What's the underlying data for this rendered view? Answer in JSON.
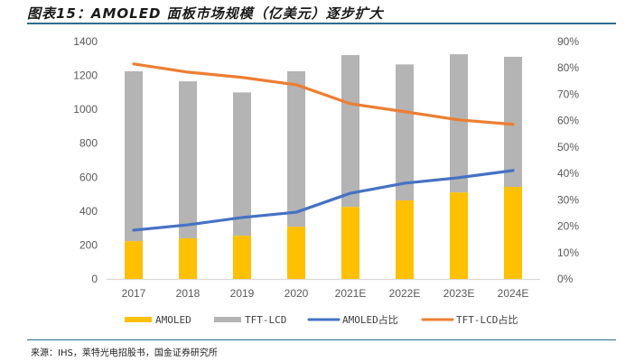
{
  "title": "图表15：AMOLED 面板市场规模（亿美元）逐步扩大",
  "source": "来源：IHS，莱特光电招股书，国金证券研究所",
  "colors": {
    "amoled": "#ffc000",
    "tftlcd": "#b4b4b4",
    "amoled_share": "#4472c4",
    "tftlcd_share": "#ed7d31",
    "axis": "#d9d9d9",
    "rule": "#2e6d8e"
  },
  "chart_data": {
    "type": "bar",
    "stacked": true,
    "title": "AMOLED 面板市场规模（亿美元）逐步扩大",
    "categories": [
      "2017",
      "2018",
      "2019",
      "2020",
      "2021E",
      "2022E",
      "2023E",
      "2024E"
    ],
    "series": [
      {
        "name": "AMOLED",
        "type": "bar",
        "axis": "left",
        "values": [
          223,
          240,
          255,
          308,
          425,
          463,
          510,
          543
        ]
      },
      {
        "name": "TFT-LCD",
        "type": "bar",
        "axis": "left",
        "values": [
          1002,
          925,
          845,
          917,
          895,
          802,
          815,
          767
        ]
      },
      {
        "name": "AMOLED占比",
        "type": "line",
        "axis": "right",
        "values": [
          0.185,
          0.205,
          0.233,
          0.253,
          0.325,
          0.363,
          0.384,
          0.411
        ]
      },
      {
        "name": "TFT-LCD占比",
        "type": "line",
        "axis": "right",
        "values": [
          0.815,
          0.784,
          0.764,
          0.736,
          0.664,
          0.634,
          0.603,
          0.586
        ]
      }
    ],
    "left_axis": {
      "ylim": [
        0,
        1400
      ],
      "ticks": [
        "0",
        "200",
        "400",
        "600",
        "800",
        "1000",
        "1200",
        "1400"
      ]
    },
    "right_axis": {
      "ylim": [
        0,
        0.9
      ],
      "ticks": [
        "0%",
        "10%",
        "20%",
        "30%",
        "40%",
        "50%",
        "60%",
        "70%",
        "80%",
        "90%"
      ]
    },
    "grid": false,
    "legend": {
      "position": "bottom",
      "entries": [
        "AMOLED",
        "TFT-LCD",
        "AMOLED占比",
        "TFT-LCD占比"
      ]
    },
    "xlabel": "",
    "ylabel": ""
  }
}
